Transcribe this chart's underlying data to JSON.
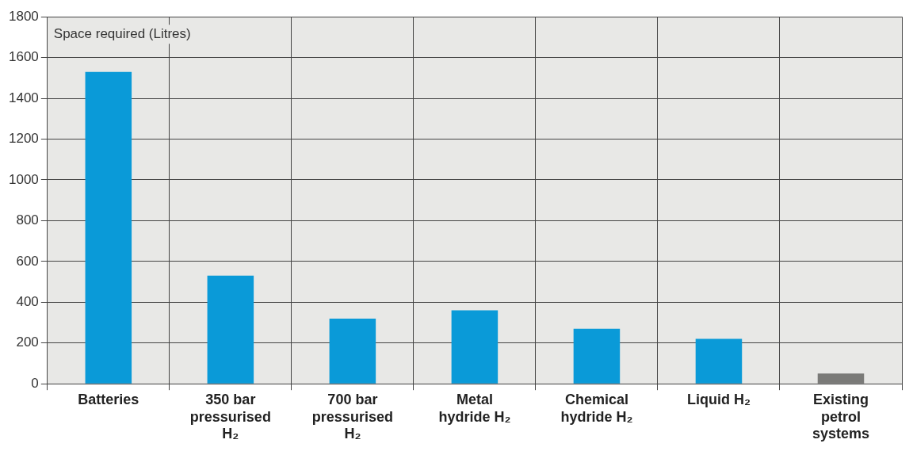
{
  "chart_data": {
    "type": "bar",
    "ylabel": "Space required (Litres)",
    "categories": [
      "Batteries",
      "350 bar pressurised H₂",
      "700 bar pressurised H₂",
      "Metal hydride H₂",
      "Chemical hydride H₂",
      "Liquid H₂",
      "Existing petrol systems"
    ],
    "values": [
      1530,
      530,
      320,
      360,
      270,
      220,
      50
    ],
    "colors": [
      "#0a9ad8",
      "#0a9ad8",
      "#0a9ad8",
      "#0a9ad8",
      "#0a9ad8",
      "#0a9ad8",
      "#7a7a78"
    ],
    "ylim": [
      0,
      1800
    ],
    "yticks": [
      0,
      200,
      400,
      600,
      800,
      1000,
      1200,
      1400,
      1600,
      1800
    ],
    "grid": true
  }
}
